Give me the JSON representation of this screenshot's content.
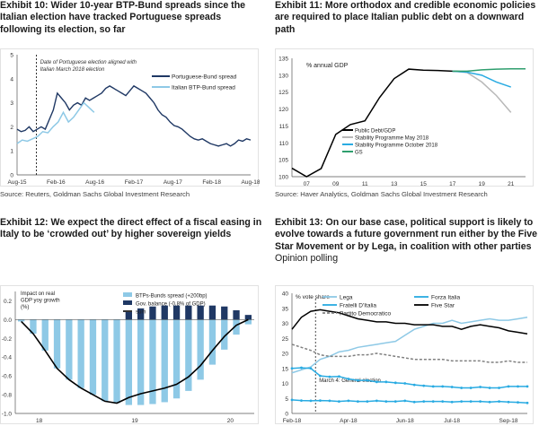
{
  "exhibits": [
    {
      "title": "Exhibit 10: Wider 10-year BTP-Bund spreads since the Italian election have tracked Portuguese spreads following its election, so far",
      "subtitle": "",
      "source": "Source: Reuters, Goldman Sachs Global Investment Research"
    },
    {
      "title": "Exhibit 11: More orthodox and credible economic policies are required to place Italian public debt on a downward path",
      "subtitle": "",
      "source": "Source: Haver Analytics, Goldman Sachs Global Investment Research"
    },
    {
      "title": "Exhibit 12: We expect the direct effect of a fiscal easing in Italy to be ‘crowded out’ by higher sovereign yields",
      "subtitle": "",
      "source": ""
    },
    {
      "title": "Exhibit 13: On our base case, political support is likely to evolve towards a future government run either by the Five Star Movement or by Lega, in coalition with other parties",
      "subtitle": "Opinion polling",
      "source": ""
    }
  ],
  "chart_data": [
    {
      "type": "line",
      "ylim": [
        0,
        5
      ],
      "yticks": [
        0,
        1,
        2,
        3,
        4,
        5
      ],
      "x_tick_labels": [
        "Aug-15",
        "Feb-16",
        "Aug-16",
        "Feb-17",
        "Aug-17",
        "Feb-18",
        "Aug-18"
      ],
      "annotation": "Date of Portuguese election aligned with Italian March 2018 election",
      "series": [
        {
          "name": "Portuguese-Bund spread",
          "color": "#1f3864",
          "values": [
            1.9,
            1.8,
            1.85,
            2.0,
            1.8,
            1.9,
            2.0,
            1.9,
            2.3,
            2.7,
            3.4,
            3.2,
            3.0,
            2.7,
            2.9,
            3.0,
            2.9,
            3.2,
            3.1,
            3.2,
            3.3,
            3.4,
            3.6,
            3.7,
            3.6,
            3.5,
            3.4,
            3.3,
            3.5,
            3.7,
            3.6,
            3.5,
            3.4,
            3.2,
            3.0,
            2.7,
            2.5,
            2.4,
            2.2,
            2.05,
            2.0,
            1.9,
            1.75,
            1.6,
            1.5,
            1.45,
            1.5,
            1.4,
            1.3,
            1.25,
            1.2,
            1.25,
            1.3,
            1.2,
            1.3,
            1.45,
            1.4,
            1.5,
            1.45
          ]
        },
        {
          "name": "Italian BTP-Bund spread",
          "color": "#8ec9e6",
          "values": [
            1.3,
            1.45,
            1.4,
            1.5,
            1.6,
            1.8,
            1.75,
            2.0,
            2.2,
            2.6,
            2.2,
            2.4,
            2.7,
            3.0,
            2.8,
            2.6
          ]
        }
      ]
    },
    {
      "type": "line",
      "ylabel": "% annual GDP",
      "ylim": [
        100,
        135
      ],
      "yticks": [
        100,
        105,
        110,
        115,
        120,
        125,
        130,
        135
      ],
      "x_tick_labels": [
        "07",
        "09",
        "11",
        "13",
        "15",
        "17",
        "19",
        "21"
      ],
      "series": [
        {
          "name": "Public Debt/GDP",
          "color": "#000000",
          "values": [
            [
              2006,
              102.5
            ],
            [
              2007,
              100.0
            ],
            [
              2008,
              102.4
            ],
            [
              2009,
              112.5
            ],
            [
              2010,
              115.4
            ],
            [
              2011,
              116.5
            ],
            [
              2012,
              123.4
            ],
            [
              2013,
              129.0
            ],
            [
              2014,
              131.8
            ],
            [
              2015,
              131.5
            ],
            [
              2016,
              131.4
            ],
            [
              2017,
              131.2
            ],
            [
              2018,
              131.0
            ]
          ]
        },
        {
          "name": "Stability Programme May 2018",
          "color": "#b8b8b8",
          "values": [
            [
              2017,
              131.2
            ],
            [
              2018,
              130.8
            ],
            [
              2019,
              128.0
            ],
            [
              2020,
              124.0
            ],
            [
              2021,
              119.0
            ]
          ]
        },
        {
          "name": "Stability Programme October 2018",
          "color": "#29abe2",
          "values": [
            [
              2017,
              131.2
            ],
            [
              2018,
              130.9
            ],
            [
              2019,
              130.0
            ],
            [
              2020,
              128.0
            ],
            [
              2021,
              126.5
            ]
          ]
        },
        {
          "name": "GS",
          "color": "#2e9e6e",
          "values": [
            [
              2017,
              131.2
            ],
            [
              2018,
              131.2
            ],
            [
              2019,
              131.6
            ],
            [
              2020,
              131.8
            ],
            [
              2021,
              131.9
            ],
            [
              2022,
              131.9
            ]
          ]
        }
      ]
    },
    {
      "type": "bar",
      "ylabel": "Impact on real GDP yoy growth (%)",
      "ylim": [
        -1.0,
        0.3
      ],
      "yticks": [
        0.2,
        0.0,
        -0.2,
        -0.4,
        -0.6,
        -0.8,
        -1.0
      ],
      "x_tick_labels": [
        "18",
        "19",
        "20"
      ],
      "series": [
        {
          "name": "BTPs-Bunds spread (+200bp)",
          "color": "#8ec9e6",
          "values": [
            -0.02,
            -0.15,
            -0.33,
            -0.52,
            -0.64,
            -0.73,
            -0.8,
            -0.87,
            -0.89,
            -0.91,
            -0.91,
            -0.9,
            -0.88,
            -0.84,
            -0.76,
            -0.64,
            -0.48,
            -0.32,
            -0.16,
            -0.05
          ]
        },
        {
          "name": "Gov. balance (-0.8% of GDP)",
          "color": "#1f3864",
          "values": [
            0.0,
            0.0,
            0.0,
            0.0,
            0.0,
            0.0,
            0.0,
            0.0,
            0.0,
            0.08,
            0.12,
            0.14,
            0.15,
            0.15,
            0.15,
            0.15,
            0.15,
            0.14,
            0.1,
            0.05
          ]
        },
        {
          "name": "sum",
          "color": "#000000",
          "values": [
            -0.02,
            -0.15,
            -0.33,
            -0.52,
            -0.64,
            -0.73,
            -0.8,
            -0.87,
            -0.89,
            -0.83,
            -0.79,
            -0.76,
            -0.73,
            -0.69,
            -0.61,
            -0.49,
            -0.33,
            -0.18,
            -0.06,
            0.0
          ]
        }
      ]
    },
    {
      "type": "line",
      "ylabel": "% vote share",
      "ylim": [
        0,
        40
      ],
      "yticks": [
        0,
        5,
        10,
        15,
        20,
        25,
        30,
        35,
        40
      ],
      "x_tick_labels": [
        "Feb-18",
        "Apr-18",
        "Jun-18",
        "Jul-18",
        "Sep-18"
      ],
      "annotation": "March 4: General election",
      "series": [
        {
          "name": "Lega",
          "color": "#8ec9e6",
          "values": [
            [
              0,
              13.5
            ],
            [
              2,
              15.5
            ],
            [
              3,
              18.0
            ],
            [
              4,
              19.0
            ],
            [
              5,
              20.5
            ],
            [
              6,
              21.0
            ],
            [
              7,
              22.0
            ],
            [
              8,
              22.5
            ],
            [
              9,
              23.0
            ],
            [
              10,
              23.5
            ],
            [
              11,
              24.0
            ],
            [
              12,
              26.0
            ],
            [
              13,
              28.0
            ],
            [
              14,
              29.0
            ],
            [
              15,
              30.0
            ],
            [
              16,
              30.0
            ],
            [
              17,
              31.0
            ],
            [
              18,
              30.0
            ],
            [
              19,
              30.5
            ],
            [
              20,
              31.0
            ],
            [
              21,
              31.5
            ],
            [
              22,
              31.0
            ],
            [
              23,
              31.0
            ],
            [
              24,
              31.5
            ],
            [
              25,
              32.0
            ]
          ]
        },
        {
          "name": "Forza Italia",
          "color": "#29abe2",
          "values": [
            [
              0,
              15.0
            ],
            [
              1,
              15.2
            ],
            [
              2,
              15.0
            ],
            [
              3,
              12.5
            ],
            [
              4,
              12.2
            ],
            [
              5,
              12.3
            ],
            [
              6,
              11.5
            ],
            [
              7,
              11.0
            ],
            [
              8,
              11.0
            ],
            [
              9,
              10.5
            ],
            [
              10,
              10.5
            ],
            [
              11,
              10.2
            ],
            [
              12,
              10.0
            ],
            [
              13,
              9.5
            ],
            [
              14,
              9.2
            ],
            [
              15,
              9.0
            ],
            [
              16,
              9.0
            ],
            [
              17,
              8.8
            ],
            [
              18,
              8.5
            ],
            [
              19,
              8.5
            ],
            [
              20,
              8.8
            ],
            [
              21,
              8.5
            ],
            [
              22,
              8.5
            ],
            [
              23,
              9.0
            ],
            [
              24,
              9.0
            ],
            [
              25,
              9.0
            ]
          ]
        },
        {
          "name": "Fratelli D'Italia",
          "color": "#29abe2",
          "values": [
            [
              0,
              4.5
            ],
            [
              1,
              4.3
            ],
            [
              2,
              4.2
            ],
            [
              3,
              4.3
            ],
            [
              4,
              4.2
            ],
            [
              5,
              4.0
            ],
            [
              6,
              4.2
            ],
            [
              7,
              4.0
            ],
            [
              8,
              4.0
            ],
            [
              9,
              4.2
            ],
            [
              10,
              4.0
            ],
            [
              11,
              4.0
            ],
            [
              12,
              4.2
            ],
            [
              13,
              3.8
            ],
            [
              14,
              4.0
            ],
            [
              15,
              4.0
            ],
            [
              16,
              4.0
            ],
            [
              17,
              3.8
            ],
            [
              18,
              4.0
            ],
            [
              19,
              4.0
            ],
            [
              20,
              4.0
            ],
            [
              21,
              3.8
            ],
            [
              22,
              4.0
            ],
            [
              23,
              3.8
            ],
            [
              24,
              3.7
            ],
            [
              25,
              3.5
            ]
          ]
        },
        {
          "name": "Five Star",
          "color": "#000000",
          "values": [
            [
              0,
              28.0
            ],
            [
              1,
              32.0
            ],
            [
              2,
              34.0
            ],
            [
              3,
              34.5
            ],
            [
              4,
              34.0
            ],
            [
              5,
              33.5
            ],
            [
              6,
              32.5
            ],
            [
              7,
              31.5
            ],
            [
              8,
              31.0
            ],
            [
              9,
              30.5
            ],
            [
              10,
              30.5
            ],
            [
              11,
              30.0
            ],
            [
              12,
              30.0
            ],
            [
              13,
              29.5
            ],
            [
              14,
              29.5
            ],
            [
              15,
              29.5
            ],
            [
              16,
              29.0
            ],
            [
              17,
              29.0
            ],
            [
              18,
              28.0
            ],
            [
              19,
              29.0
            ],
            [
              20,
              29.5
            ],
            [
              21,
              29.0
            ],
            [
              22,
              28.5
            ],
            [
              23,
              27.5
            ],
            [
              24,
              27.0
            ],
            [
              25,
              26.5
            ]
          ]
        },
        {
          "name": "Partito Democratico",
          "color": "#808080",
          "values": [
            [
              0,
              23.0
            ],
            [
              1,
              22.0
            ],
            [
              2,
              21.0
            ],
            [
              3,
              19.5
            ],
            [
              4,
              19.0
            ],
            [
              5,
              19.0
            ],
            [
              6,
              19.0
            ],
            [
              7,
              19.5
            ],
            [
              8,
              19.5
            ],
            [
              9,
              20.0
            ],
            [
              10,
              19.5
            ],
            [
              11,
              19.0
            ],
            [
              12,
              18.5
            ],
            [
              13,
              18.0
            ],
            [
              14,
              18.0
            ],
            [
              15,
              18.0
            ],
            [
              16,
              18.0
            ],
            [
              17,
              17.5
            ],
            [
              18,
              17.5
            ],
            [
              19,
              17.5
            ],
            [
              20,
              17.5
            ],
            [
              21,
              17.0
            ],
            [
              22,
              17.0
            ],
            [
              23,
              17.5
            ],
            [
              24,
              17.0
            ],
            [
              25,
              17.0
            ]
          ]
        }
      ]
    }
  ]
}
